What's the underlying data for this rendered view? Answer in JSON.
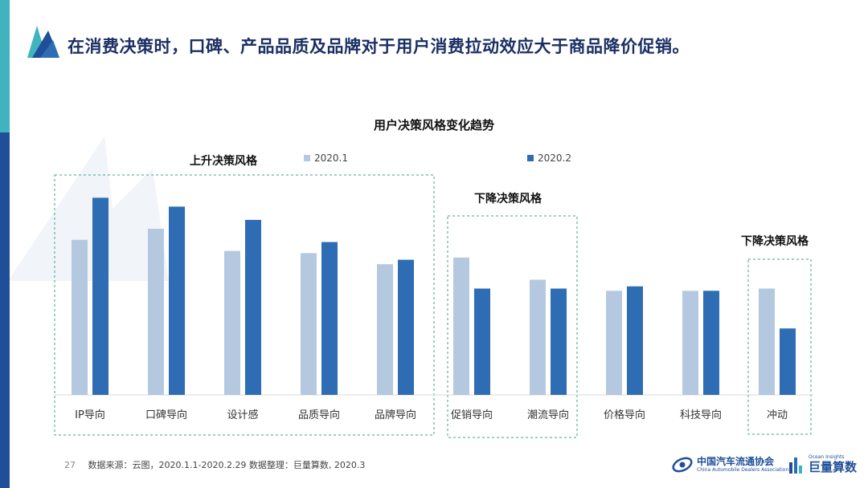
{
  "header": {
    "title": "在消费决策时，口碑、产品品质及品牌对于用户消费拉动效应大于商品降价促销。"
  },
  "colors": {
    "series_2020_1": "#b4c9e0",
    "series_2020_2": "#2e6db4",
    "group_border": "#3fa38a",
    "accent_navy": "#1f4f99",
    "accent_teal": "#3fb4bf"
  },
  "chart_data": {
    "type": "bar",
    "title": "用户决策风格变化趋势",
    "categories": [
      "IP导向",
      "口碑导向",
      "设计感",
      "品质导向",
      "品牌导向",
      "促销导向",
      "潮流导向",
      "价格导向",
      "科技导向",
      "冲动"
    ],
    "series": [
      {
        "name": "2020.1",
        "values": [
          70,
          75,
          65,
          64,
          59,
          62,
          52,
          47,
          47,
          48
        ]
      },
      {
        "name": "2020.2",
        "values": [
          89,
          85,
          79,
          69,
          61,
          48,
          48,
          49,
          47,
          30
        ]
      }
    ],
    "ylim": [
      0,
      100
    ],
    "grid": false,
    "legend": "top",
    "xlabel": "",
    "ylabel": "",
    "groups": [
      {
        "label": "上升决策风格",
        "categories": [
          "IP导向",
          "口碑导向",
          "设计感",
          "品质导向",
          "品牌导向"
        ]
      },
      {
        "label": "下降决策风格",
        "categories": [
          "促销导向",
          "潮流导向"
        ]
      },
      {
        "label": "下降决策风格",
        "categories": [
          "冲动"
        ]
      }
    ]
  },
  "footer": {
    "page_number": "27",
    "source": "数据来源：云图，2020.1.1-2020.2.29    数据整理：巨量算数, 2020.3"
  },
  "logos": {
    "caada_cn": "中国汽车流通协会",
    "caada_en": "China Automobile Dealers Association",
    "ocean_en": "Ocean Insights",
    "ocean_cn": "巨量算数"
  }
}
